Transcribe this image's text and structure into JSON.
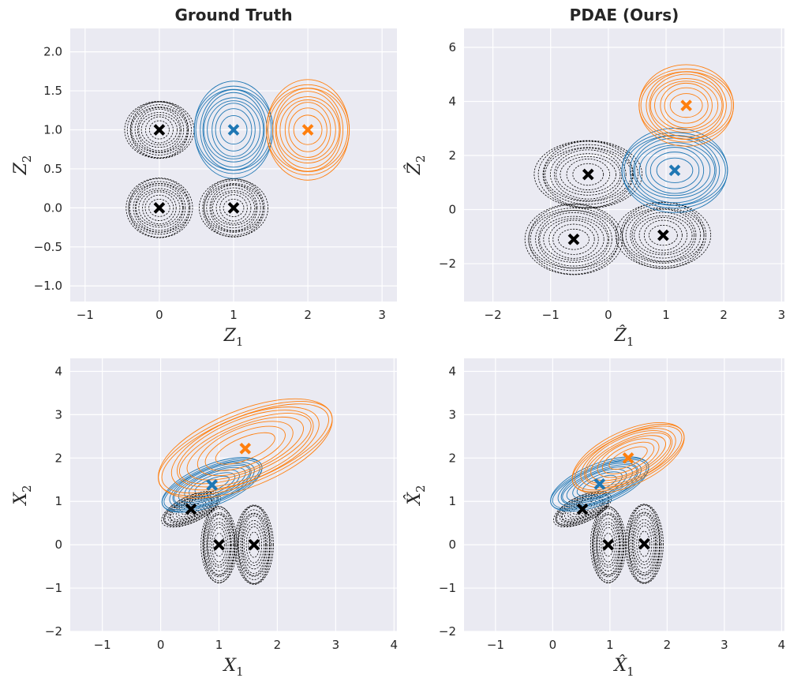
{
  "chart_data": [
    {
      "type": "contour",
      "title": "Ground Truth",
      "xlabel": {
        "base": "Z",
        "sub": "1",
        "hat": false
      },
      "ylabel": {
        "base": "Z",
        "sub": "2",
        "hat": false
      },
      "xlim": [
        -1.2,
        3.2
      ],
      "ylim": [
        -1.2,
        2.3
      ],
      "xticks": [
        -1,
        0,
        1,
        2,
        3
      ],
      "yticks": [
        -1.0,
        -0.5,
        0.0,
        0.5,
        1.0,
        1.5,
        2.0
      ],
      "xtick_labels": [
        "−1",
        "0",
        "1",
        "2",
        "3"
      ],
      "ytick_labels": [
        "−1.0",
        "−0.5",
        "0.0",
        "0.5",
        "1.0",
        "1.5",
        "2.0"
      ],
      "series": [
        {
          "name": "black",
          "color": "#000000",
          "dashed": true,
          "marker": "x",
          "centers": [
            [
              0,
              0
            ],
            [
              1,
              0
            ],
            [
              0,
              1
            ]
          ],
          "radii": [
            [
              0.45,
              0.38
            ],
            [
              0.45,
              0.38
            ],
            [
              0.45,
              0.38
            ]
          ],
          "angles": [
            0,
            0,
            0
          ]
        },
        {
          "name": "blue",
          "color": "#1f77b4",
          "dashed": false,
          "marker": "x",
          "centers": [
            [
              1,
              1
            ]
          ],
          "radii": [
            [
              0.55,
              0.6
            ]
          ],
          "angles": [
            0
          ]
        },
        {
          "name": "orange",
          "color": "#ff7f0e",
          "dashed": false,
          "marker": "x",
          "centers": [
            [
              2,
              1
            ]
          ],
          "radii": [
            [
              0.58,
              0.62
            ]
          ],
          "angles": [
            0
          ]
        }
      ]
    },
    {
      "type": "contour",
      "title": "PDAE (Ours)",
      "xlabel": {
        "base": "Z",
        "sub": "1",
        "hat": true
      },
      "ylabel": {
        "base": "Z",
        "sub": "2",
        "hat": true
      },
      "xlim": [
        -2.5,
        3.05
      ],
      "ylim": [
        -3.4,
        6.7
      ],
      "xticks": [
        -2,
        -1,
        0,
        1,
        2,
        3
      ],
      "yticks": [
        -2,
        0,
        2,
        4,
        6
      ],
      "xtick_labels": [
        "−2",
        "−1",
        "0",
        "1",
        "2",
        "3"
      ],
      "ytick_labels": [
        "−2",
        "0",
        "2",
        "4",
        "6"
      ],
      "series": [
        {
          "name": "black",
          "color": "#000000",
          "dashed": true,
          "marker": "x",
          "centers": [
            [
              -0.6,
              -1.1
            ],
            [
              0.95,
              -0.95
            ],
            [
              -0.35,
              1.3
            ]
          ],
          "radii": [
            [
              0.85,
              1.3
            ],
            [
              0.8,
              1.25
            ],
            [
              0.9,
              1.3
            ]
          ],
          "angles": [
            0,
            0,
            0
          ]
        },
        {
          "name": "blue",
          "color": "#1f77b4",
          "dashed": false,
          "marker": "x",
          "centers": [
            [
              1.15,
              1.45
            ]
          ],
          "radii": [
            [
              0.95,
              1.5
            ]
          ],
          "angles": [
            0
          ]
        },
        {
          "name": "orange",
          "color": "#ff7f0e",
          "dashed": false,
          "marker": "x",
          "centers": [
            [
              1.35,
              3.85
            ]
          ],
          "radii": [
            [
              0.85,
              1.45
            ]
          ],
          "angles": [
            0
          ]
        }
      ]
    },
    {
      "type": "contour",
      "title": "",
      "xlabel": {
        "base": "X",
        "sub": "1",
        "hat": false
      },
      "ylabel": {
        "base": "X",
        "sub": "2",
        "hat": false
      },
      "xlim": [
        -1.55,
        4.05
      ],
      "ylim": [
        -2.0,
        4.3
      ],
      "xticks": [
        -1,
        0,
        1,
        2,
        3,
        4
      ],
      "yticks": [
        -2,
        -1,
        0,
        1,
        2,
        3,
        4
      ],
      "xtick_labels": [
        "−1",
        "0",
        "1",
        "2",
        "3",
        "4"
      ],
      "ytick_labels": [
        "−2",
        "−1",
        "0",
        "1",
        "2",
        "3",
        "4"
      ],
      "series": [
        {
          "name": "black",
          "color": "#000000",
          "dashed": true,
          "marker": "x",
          "centers": [
            [
              0.52,
              0.82
            ],
            [
              1.0,
              0.0
            ],
            [
              1.6,
              0.0
            ]
          ],
          "radii": [
            [
              0.55,
              0.3
            ],
            [
              0.3,
              0.9
            ],
            [
              0.32,
              0.95
            ]
          ],
          "angles": [
            -25,
            0,
            0
          ]
        },
        {
          "name": "blue",
          "color": "#1f77b4",
          "dashed": false,
          "marker": "x",
          "centers": [
            [
              0.88,
              1.38
            ]
          ],
          "radii": [
            [
              0.95,
              0.45
            ]
          ],
          "angles": [
            -22
          ]
        },
        {
          "name": "orange",
          "color": "#ff7f0e",
          "dashed": false,
          "marker": "x",
          "centers": [
            [
              1.45,
              2.22
            ]
          ],
          "radii": [
            [
              1.65,
              0.85
            ]
          ],
          "angles": [
            -22
          ]
        }
      ]
    },
    {
      "type": "contour",
      "title": "",
      "xlabel": {
        "base": "X",
        "sub": "1",
        "hat": true
      },
      "ylabel": {
        "base": "X",
        "sub": "2",
        "hat": true
      },
      "xlim": [
        -1.55,
        4.05
      ],
      "ylim": [
        -2.0,
        4.3
      ],
      "xticks": [
        -1,
        0,
        1,
        2,
        3,
        4
      ],
      "yticks": [
        -2,
        -1,
        0,
        1,
        2,
        3,
        4
      ],
      "xtick_labels": [
        "−1",
        "0",
        "1",
        "2",
        "3",
        "4"
      ],
      "ytick_labels": [
        "−2",
        "−1",
        "0",
        "1",
        "2",
        "3",
        "4"
      ],
      "series": [
        {
          "name": "black",
          "color": "#000000",
          "dashed": true,
          "marker": "x",
          "centers": [
            [
              0.52,
              0.82
            ],
            [
              0.97,
              0.0
            ],
            [
              1.6,
              0.02
            ]
          ],
          "radii": [
            [
              0.55,
              0.3
            ],
            [
              0.3,
              0.9
            ],
            [
              0.32,
              0.95
            ]
          ],
          "angles": [
            -25,
            0,
            0
          ]
        },
        {
          "name": "blue",
          "color": "#1f77b4",
          "dashed": false,
          "marker": "x",
          "centers": [
            [
              0.82,
              1.4
            ]
          ],
          "radii": [
            [
              0.95,
              0.45
            ]
          ],
          "angles": [
            -22
          ]
        },
        {
          "name": "orange",
          "color": "#ff7f0e",
          "dashed": false,
          "marker": "x",
          "centers": [
            [
              1.32,
              2.0
            ]
          ],
          "radii": [
            [
              1.1,
              0.6
            ]
          ],
          "angles": [
            -25
          ]
        }
      ]
    }
  ]
}
